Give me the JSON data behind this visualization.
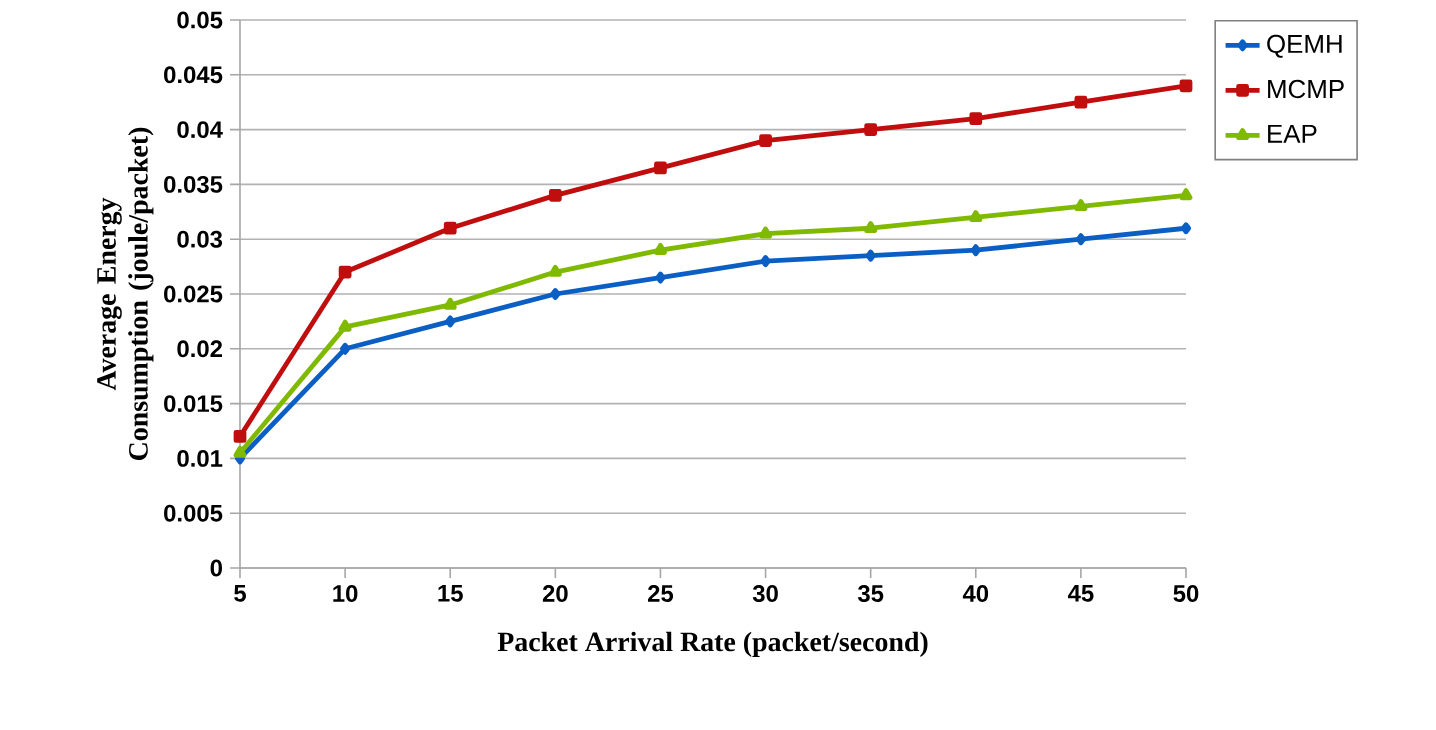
{
  "chart_data": {
    "type": "line",
    "xlabel": "Packet Arrival Rate (packet/second)",
    "ylabel": "Average Energy Consumption (joule/packet)",
    "x": [
      5,
      10,
      15,
      20,
      25,
      30,
      35,
      40,
      45,
      50
    ],
    "series": [
      {
        "name": "QEMH",
        "color": "#0b5fc4",
        "marker": "diamond",
        "values": [
          0.01,
          0.02,
          0.0225,
          0.025,
          0.0265,
          0.028,
          0.0285,
          0.029,
          0.03,
          0.031
        ]
      },
      {
        "name": "MCMP",
        "color": "#c00d0d",
        "marker": "square",
        "values": [
          0.012,
          0.027,
          0.031,
          0.034,
          0.0365,
          0.039,
          0.04,
          0.041,
          0.0425,
          0.044
        ]
      },
      {
        "name": "EAP",
        "color": "#7fba00",
        "marker": "triangle",
        "values": [
          0.0105,
          0.022,
          0.024,
          0.027,
          0.029,
          0.0305,
          0.031,
          0.032,
          0.033,
          0.034
        ]
      }
    ],
    "xlim": [
      5,
      50
    ],
    "ylim": [
      0,
      0.05
    ],
    "xticks": [
      5,
      10,
      15,
      20,
      25,
      30,
      35,
      40,
      45,
      50
    ],
    "yticks": [
      0,
      0.005,
      0.01,
      0.015,
      0.02,
      0.025,
      0.03,
      0.035,
      0.04,
      0.045,
      0.05
    ],
    "grid": "y",
    "legend": "top right",
    "line_style": "solid"
  }
}
